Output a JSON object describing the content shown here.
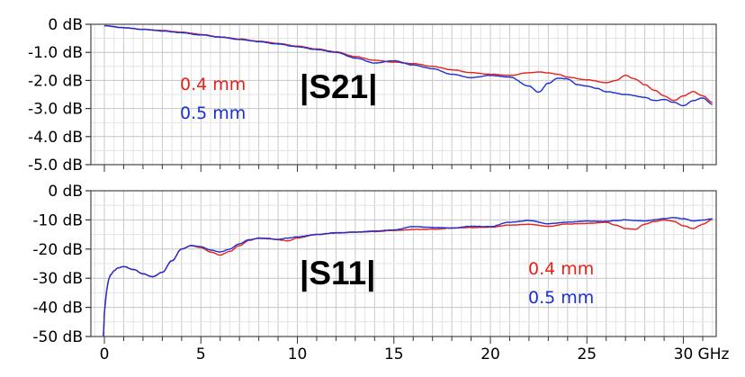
{
  "chart_data": [
    {
      "type": "line",
      "title": "|S21|",
      "xlabel": "",
      "ylabel": "",
      "xlim": [
        -0.7,
        31.7
      ],
      "ylim": [
        -5.0,
        0.0
      ],
      "y_ticks": [
        0,
        -1,
        -2,
        -3,
        -4,
        -5
      ],
      "y_tick_labels": [
        "0 dB",
        "-1.0 dB",
        "-2.0 dB",
        "-3.0 dB",
        "-4.0 dB",
        "-5.0 dB"
      ],
      "grid": true,
      "legend": "center-left",
      "series": [
        {
          "name": "0.4 mm",
          "color": "#e8201a",
          "x": [
            0,
            1,
            2,
            3,
            4,
            5,
            6,
            7,
            8,
            9,
            10,
            11,
            12,
            13,
            14,
            15,
            16,
            17,
            18,
            19,
            20,
            21,
            22,
            22.5,
            23,
            23.5,
            24,
            25,
            26,
            26.5,
            27,
            27.5,
            28,
            28.5,
            29,
            29.5,
            30,
            30.5,
            31,
            31.5
          ],
          "y": [
            -0.05,
            -0.12,
            -0.18,
            -0.22,
            -0.28,
            -0.36,
            -0.45,
            -0.52,
            -0.6,
            -0.68,
            -0.78,
            -0.88,
            -0.98,
            -1.15,
            -1.28,
            -1.35,
            -1.4,
            -1.5,
            -1.62,
            -1.72,
            -1.78,
            -1.82,
            -1.72,
            -1.7,
            -1.73,
            -1.78,
            -1.88,
            -1.98,
            -2.08,
            -2.0,
            -1.82,
            -1.95,
            -2.15,
            -2.35,
            -2.55,
            -2.72,
            -2.55,
            -2.4,
            -2.55,
            -2.78
          ]
        },
        {
          "name": "0.5 mm",
          "color": "#1c2fd6",
          "x": [
            0,
            1,
            2,
            3,
            4,
            5,
            6,
            7,
            8,
            9,
            10,
            11,
            12,
            13,
            14,
            15,
            16,
            17,
            18,
            19,
            20,
            21,
            22,
            22.5,
            23,
            23.5,
            24,
            24.5,
            25,
            25.5,
            26,
            27,
            28,
            28.5,
            29,
            29.5,
            30,
            30.5,
            31,
            31.5
          ],
          "y": [
            -0.05,
            -0.12,
            -0.18,
            -0.24,
            -0.3,
            -0.38,
            -0.46,
            -0.54,
            -0.62,
            -0.7,
            -0.8,
            -0.9,
            -1.0,
            -1.2,
            -1.38,
            -1.3,
            -1.45,
            -1.58,
            -1.78,
            -1.9,
            -1.82,
            -1.88,
            -2.2,
            -2.42,
            -2.1,
            -1.92,
            -1.95,
            -2.15,
            -2.2,
            -2.28,
            -2.4,
            -2.5,
            -2.6,
            -2.72,
            -2.68,
            -2.78,
            -2.9,
            -2.72,
            -2.62,
            -2.85
          ]
        }
      ]
    },
    {
      "type": "line",
      "title": "|S11|",
      "xlabel": "GHz",
      "ylabel": "",
      "xlim": [
        -0.7,
        31.7
      ],
      "ylim": [
        -50,
        0
      ],
      "x_ticks": [
        0,
        5,
        10,
        15,
        20,
        25,
        30
      ],
      "y_ticks": [
        0,
        -10,
        -20,
        -30,
        -40,
        -50
      ],
      "y_tick_labels": [
        "0 dB",
        "-10 dB",
        "-20 dB",
        "-30 dB",
        "-40 dB",
        "-50 dB"
      ],
      "grid": true,
      "legend": "lower-right",
      "series": [
        {
          "name": "0.4 mm",
          "color": "#e8201a",
          "x": [
            -0.05,
            0,
            0.1,
            0.2,
            0.3,
            0.5,
            0.7,
            1,
            1.5,
            2,
            2.5,
            3,
            3.5,
            4,
            4.5,
            5,
            5.5,
            6,
            6.5,
            7,
            7.5,
            8,
            8.5,
            9,
            9.5,
            10,
            11,
            12,
            13,
            14,
            15,
            16,
            17,
            18,
            19,
            20,
            21,
            22,
            23,
            24,
            25,
            26,
            26.5,
            27,
            27.5,
            28,
            28.5,
            29,
            29.5,
            30,
            30.5,
            31,
            31.5
          ],
          "y": [
            -50,
            -42,
            -35,
            -31,
            -29,
            -27.5,
            -26.5,
            -26,
            -27,
            -28.5,
            -29.5,
            -28,
            -24,
            -20,
            -18.8,
            -19.5,
            -21,
            -22,
            -20.8,
            -18.8,
            -17,
            -16.2,
            -16.3,
            -16.8,
            -17.2,
            -16.2,
            -15,
            -14.5,
            -14.2,
            -14,
            -13.6,
            -13.3,
            -13.2,
            -12.8,
            -12.6,
            -12.5,
            -11.8,
            -11.5,
            -12.2,
            -11.4,
            -11.2,
            -10.8,
            -11.8,
            -13,
            -13.2,
            -11.5,
            -10.5,
            -10,
            -10.5,
            -12,
            -13,
            -11.5,
            -9.8
          ]
        },
        {
          "name": "0.5 mm",
          "color": "#1c2fd6",
          "x": [
            -0.05,
            0,
            0.1,
            0.2,
            0.3,
            0.5,
            0.7,
            1,
            1.5,
            2,
            2.5,
            3,
            3.5,
            4,
            4.5,
            5,
            5.5,
            6,
            6.5,
            7,
            7.5,
            8,
            8.5,
            9,
            9.5,
            10,
            11,
            12,
            13,
            14,
            15,
            16,
            17,
            18,
            19,
            20,
            21,
            22,
            23,
            24,
            25,
            26,
            26.5,
            27,
            27.5,
            28,
            28.5,
            29,
            29.5,
            30,
            30.5,
            31,
            31.5
          ],
          "y": [
            -50,
            -42,
            -35,
            -31,
            -29,
            -27.5,
            -26.5,
            -26,
            -27,
            -28.5,
            -29.5,
            -28,
            -24,
            -20,
            -18.8,
            -19.2,
            -20.3,
            -21,
            -20,
            -18.2,
            -16.8,
            -16.3,
            -16.5,
            -16.7,
            -16.2,
            -15.8,
            -15,
            -14.4,
            -14.2,
            -13.8,
            -13.4,
            -12.3,
            -12.6,
            -12.8,
            -12.2,
            -12.3,
            -10.8,
            -10.2,
            -11.3,
            -10.8,
            -10.4,
            -10.5,
            -10.2,
            -10,
            -10.2,
            -10.4,
            -10,
            -9.5,
            -9.2,
            -9.6,
            -10.3,
            -10.1,
            -9.6
          ]
        }
      ]
    }
  ]
}
